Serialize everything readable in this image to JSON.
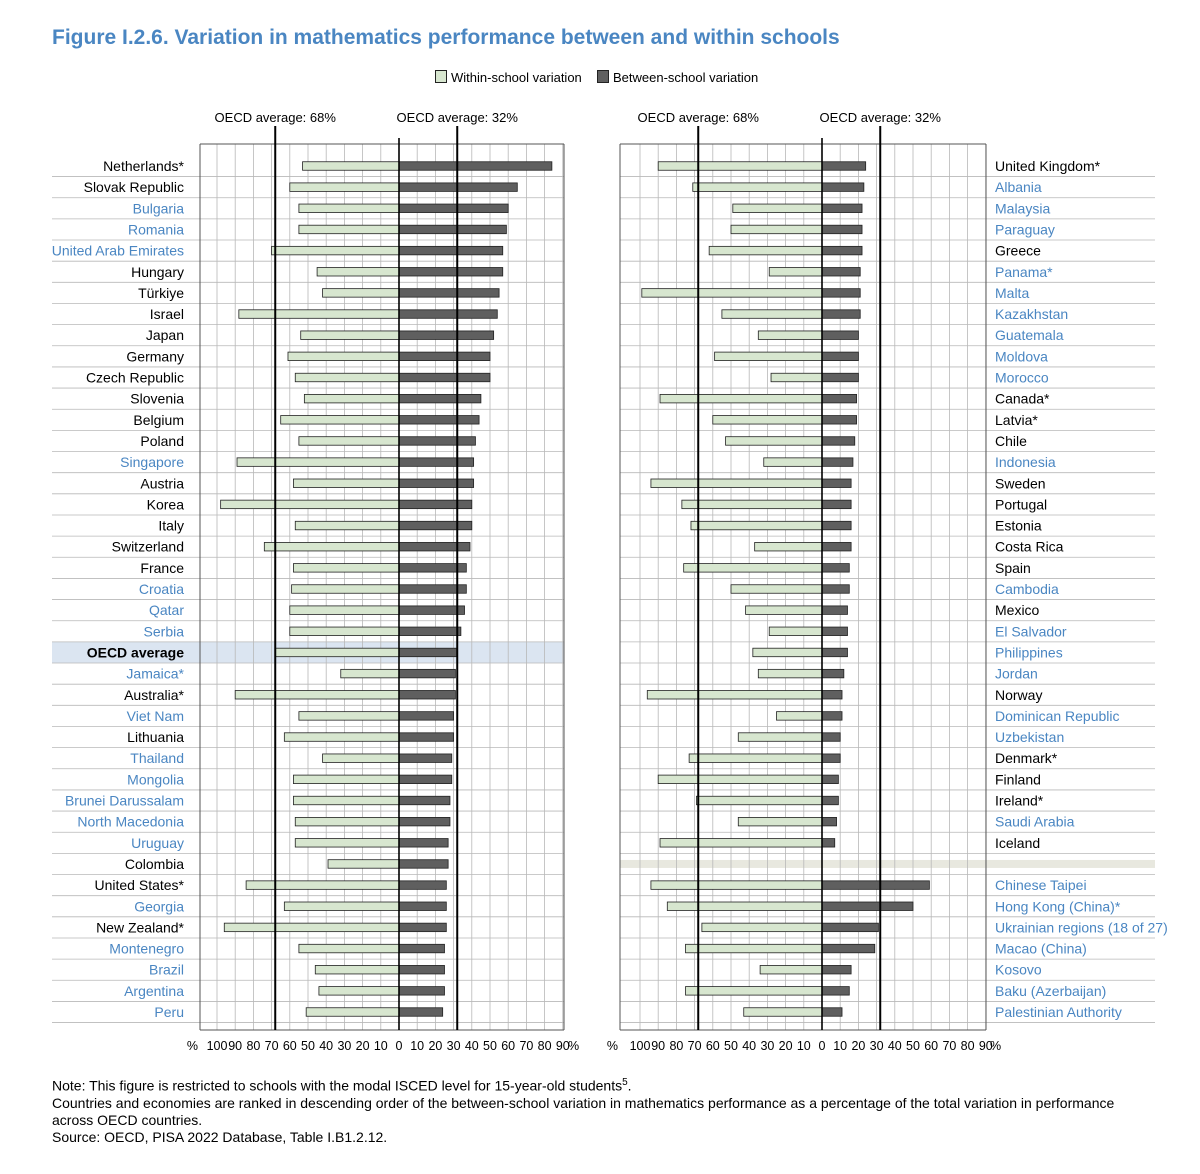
{
  "title": "Figure I.2.6. Variation in mathematics performance between and within schools",
  "legend": [
    {
      "label": "Within-school variation",
      "color": "#d7e6cf"
    },
    {
      "label": "Between-school variation",
      "color": "#5f5f5f"
    }
  ],
  "notes": {
    "line1": "Note: This figure is restricted to schools with the modal ISCED level for 15-year-old students",
    "line1_sup": "5",
    "line1_end": ".",
    "line2": "Countries and economies are ranked in descending order of the between-school variation in mathematics performance as a percentage of the total variation in performance across OECD countries.",
    "source": "Source: OECD, PISA 2022 Database, Table I.B1.2.12."
  },
  "chart_data": [
    {
      "type": "bar",
      "orientation": "horizontal-diverging",
      "title": "",
      "xlabel": "%",
      "axis_ticks": [
        "100",
        "90",
        "80",
        "70",
        "60",
        "50",
        "40",
        "30",
        "20",
        "10",
        "0",
        "10",
        "20",
        "30",
        "40",
        "50",
        "60",
        "70",
        "80",
        "90"
      ],
      "xlim_within": [
        0,
        100
      ],
      "xlim_between": [
        0,
        90
      ],
      "reference_lines": [
        {
          "label": "OECD average: 68%",
          "series": "within",
          "value": 68
        },
        {
          "label": "OECD average: 32%",
          "series": "between",
          "value": 32
        }
      ],
      "label_side": "left",
      "rows": [
        {
          "name": "Netherlands*",
          "oecd": true,
          "within": 53,
          "between": 84
        },
        {
          "name": "Slovak Republic",
          "oecd": true,
          "within": 60,
          "between": 65
        },
        {
          "name": "Bulgaria",
          "oecd": false,
          "within": 55,
          "between": 60
        },
        {
          "name": "Romania",
          "oecd": false,
          "within": 55,
          "between": 59
        },
        {
          "name": "United Arab Emirates",
          "oecd": false,
          "within": 70,
          "between": 57
        },
        {
          "name": "Hungary",
          "oecd": true,
          "within": 45,
          "between": 57
        },
        {
          "name": "Türkiye",
          "oecd": true,
          "within": 42,
          "between": 55
        },
        {
          "name": "Israel",
          "oecd": true,
          "within": 88,
          "between": 54
        },
        {
          "name": "Japan",
          "oecd": true,
          "within": 54,
          "between": 52
        },
        {
          "name": "Germany",
          "oecd": true,
          "within": 61,
          "between": 50
        },
        {
          "name": "Czech Republic",
          "oecd": true,
          "within": 57,
          "between": 50
        },
        {
          "name": "Slovenia",
          "oecd": true,
          "within": 52,
          "between": 45
        },
        {
          "name": "Belgium",
          "oecd": true,
          "within": 65,
          "between": 44
        },
        {
          "name": "Poland",
          "oecd": true,
          "within": 55,
          "between": 42
        },
        {
          "name": "Singapore",
          "oecd": false,
          "within": 89,
          "between": 41
        },
        {
          "name": "Austria",
          "oecd": true,
          "within": 58,
          "between": 41
        },
        {
          "name": "Korea",
          "oecd": true,
          "within": 98,
          "between": 40
        },
        {
          "name": "Italy",
          "oecd": true,
          "within": 57,
          "between": 40
        },
        {
          "name": "Switzerland",
          "oecd": true,
          "within": 74,
          "between": 39
        },
        {
          "name": "France",
          "oecd": true,
          "within": 58,
          "between": 37
        },
        {
          "name": "Croatia",
          "oecd": false,
          "within": 59,
          "between": 37
        },
        {
          "name": "Qatar",
          "oecd": false,
          "within": 60,
          "between": 36
        },
        {
          "name": "Serbia",
          "oecd": false,
          "within": 60,
          "between": 34
        },
        {
          "name": "OECD average",
          "oecd": "average",
          "within": 68,
          "between": 32
        },
        {
          "name": "Jamaica*",
          "oecd": false,
          "within": 32,
          "between": 31
        },
        {
          "name": "Australia*",
          "oecd": true,
          "within": 90,
          "between": 31
        },
        {
          "name": "Viet Nam",
          "oecd": false,
          "within": 55,
          "between": 30
        },
        {
          "name": "Lithuania",
          "oecd": true,
          "within": 63,
          "between": 30
        },
        {
          "name": "Thailand",
          "oecd": false,
          "within": 42,
          "between": 29
        },
        {
          "name": "Mongolia",
          "oecd": false,
          "within": 58,
          "between": 29
        },
        {
          "name": "Brunei Darussalam",
          "oecd": false,
          "within": 58,
          "between": 28
        },
        {
          "name": "North Macedonia",
          "oecd": false,
          "within": 57,
          "between": 28
        },
        {
          "name": "Uruguay",
          "oecd": false,
          "within": 57,
          "between": 27
        },
        {
          "name": "Colombia",
          "oecd": true,
          "within": 39,
          "between": 27
        },
        {
          "name": "United States*",
          "oecd": true,
          "within": 84,
          "between": 26
        },
        {
          "name": "Georgia",
          "oecd": false,
          "within": 63,
          "between": 26
        },
        {
          "name": "New Zealand*",
          "oecd": true,
          "within": 96,
          "between": 26
        },
        {
          "name": "Montenegro",
          "oecd": false,
          "within": 55,
          "between": 25
        },
        {
          "name": "Brazil",
          "oecd": false,
          "within": 46,
          "between": 25
        },
        {
          "name": "Argentina",
          "oecd": false,
          "within": 44,
          "between": 25
        },
        {
          "name": "Peru",
          "oecd": false,
          "within": 51,
          "between": 24
        }
      ]
    },
    {
      "type": "bar",
      "orientation": "horizontal-diverging",
      "title": "",
      "xlabel": "%",
      "axis_ticks": [
        "100",
        "90",
        "80",
        "70",
        "60",
        "50",
        "40",
        "30",
        "20",
        "10",
        "0",
        "10",
        "20",
        "30",
        "40",
        "50",
        "60",
        "70",
        "80",
        "90"
      ],
      "xlim_within": [
        0,
        100
      ],
      "xlim_between": [
        0,
        90
      ],
      "reference_lines": [
        {
          "label": "OECD average: 68%",
          "series": "within",
          "value": 68
        },
        {
          "label": "OECD average: 32%",
          "series": "between",
          "value": 32
        }
      ],
      "label_side": "right",
      "rows": [
        {
          "name": "United Kingdom*",
          "oecd": true,
          "within": 90,
          "between": 24
        },
        {
          "name": "Albania",
          "oecd": false,
          "within": 71,
          "between": 23
        },
        {
          "name": "Malaysia",
          "oecd": false,
          "within": 49,
          "between": 22
        },
        {
          "name": "Paraguay",
          "oecd": false,
          "within": 50,
          "between": 22
        },
        {
          "name": "Greece",
          "oecd": true,
          "within": 62,
          "between": 22
        },
        {
          "name": "Panama*",
          "oecd": false,
          "within": 29,
          "between": 21
        },
        {
          "name": "Malta",
          "oecd": false,
          "within": 99,
          "between": 21
        },
        {
          "name": "Kazakhstan",
          "oecd": false,
          "within": 55,
          "between": 21
        },
        {
          "name": "Guatemala",
          "oecd": false,
          "within": 35,
          "between": 20
        },
        {
          "name": "Moldova",
          "oecd": false,
          "within": 59,
          "between": 20
        },
        {
          "name": "Morocco",
          "oecd": false,
          "within": 28,
          "between": 20
        },
        {
          "name": "Canada*",
          "oecd": true,
          "within": 89,
          "between": 19
        },
        {
          "name": "Latvia*",
          "oecd": true,
          "within": 60,
          "between": 19
        },
        {
          "name": "Chile",
          "oecd": true,
          "within": 53,
          "between": 18
        },
        {
          "name": "Indonesia",
          "oecd": false,
          "within": 32,
          "between": 17
        },
        {
          "name": "Sweden",
          "oecd": true,
          "within": 94,
          "between": 16
        },
        {
          "name": "Portugal",
          "oecd": true,
          "within": 77,
          "between": 16
        },
        {
          "name": "Estonia",
          "oecd": true,
          "within": 72,
          "between": 16
        },
        {
          "name": "Costa Rica",
          "oecd": true,
          "within": 37,
          "between": 16
        },
        {
          "name": "Spain",
          "oecd": true,
          "within": 76,
          "between": 15
        },
        {
          "name": "Cambodia",
          "oecd": false,
          "within": 50,
          "between": 15
        },
        {
          "name": "Mexico",
          "oecd": true,
          "within": 42,
          "between": 14
        },
        {
          "name": "El Salvador",
          "oecd": false,
          "within": 29,
          "between": 14
        },
        {
          "name": "Philippines",
          "oecd": false,
          "within": 38,
          "between": 14
        },
        {
          "name": "Jordan",
          "oecd": false,
          "within": 35,
          "between": 12
        },
        {
          "name": "Norway",
          "oecd": true,
          "within": 96,
          "between": 11
        },
        {
          "name": "Dominican Republic",
          "oecd": false,
          "within": 25,
          "between": 11
        },
        {
          "name": "Uzbekistan",
          "oecd": false,
          "within": 46,
          "between": 10
        },
        {
          "name": "Denmark*",
          "oecd": true,
          "within": 73,
          "between": 10
        },
        {
          "name": "Finland",
          "oecd": true,
          "within": 90,
          "between": 9
        },
        {
          "name": "Ireland*",
          "oecd": true,
          "within": 69,
          "between": 9
        },
        {
          "name": "Saudi Arabia",
          "oecd": false,
          "within": 46,
          "between": 8
        },
        {
          "name": "Iceland",
          "oecd": true,
          "within": 89,
          "between": 7
        },
        {
          "name": "",
          "separator": true
        },
        {
          "name": "Chinese Taipei",
          "oecd": false,
          "within": 94,
          "between": 59
        },
        {
          "name": "Hong Kong (China)*",
          "oecd": false,
          "within": 85,
          "between": 50
        },
        {
          "name": "Ukrainian regions (18 of 27)",
          "oecd": false,
          "within": 66,
          "between": 31
        },
        {
          "name": "Macao (China)",
          "oecd": false,
          "within": 75,
          "between": 29
        },
        {
          "name": "Kosovo",
          "oecd": false,
          "within": 34,
          "between": 16
        },
        {
          "name": "Baku (Azerbaijan)",
          "oecd": false,
          "within": 75,
          "between": 15
        },
        {
          "name": "Palestinian Authority",
          "oecd": false,
          "within": 43,
          "between": 11
        }
      ]
    }
  ],
  "colors": {
    "within_fill": "#d7e6cf",
    "between_fill": "#5f5f5f",
    "bar_stroke": "#222222",
    "grid": "#b8b8b8",
    "partner_label": "#4a86c2",
    "oecd_label": "#000000",
    "average_band": "#dbe5f1",
    "separator_band": "#e8e8df"
  }
}
